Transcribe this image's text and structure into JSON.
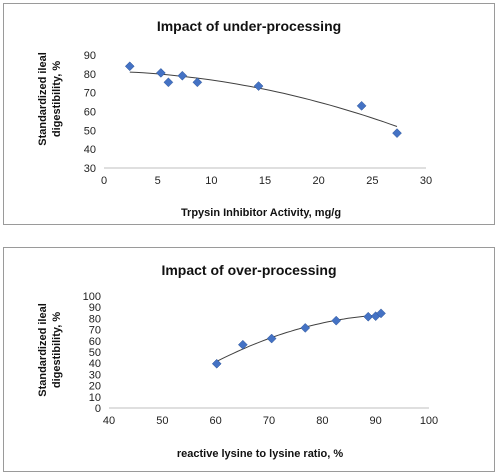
{
  "chart_data": [
    {
      "type": "scatter",
      "title": "Impact of under-processing",
      "xlabel": "Trpysin Inhibitor Activity, mg/g",
      "ylabel": "Standardized ileal digestibility, %",
      "ylabel_lines": [
        "Standardized ileal",
        "digestibility, %"
      ],
      "xlim": [
        0,
        30
      ],
      "ylim": [
        30,
        90
      ],
      "xticks": [
        0,
        5,
        10,
        15,
        20,
        25,
        30
      ],
      "yticks": [
        30,
        40,
        50,
        60,
        70,
        80,
        90
      ],
      "trendline": true,
      "points": [
        {
          "x": 2.4,
          "y": 84
        },
        {
          "x": 5.3,
          "y": 80.5
        },
        {
          "x": 6.0,
          "y": 75.5
        },
        {
          "x": 7.3,
          "y": 79
        },
        {
          "x": 8.7,
          "y": 75.5
        },
        {
          "x": 14.4,
          "y": 73.5
        },
        {
          "x": 24.0,
          "y": 63
        },
        {
          "x": 27.3,
          "y": 48.5
        }
      ],
      "marker_color": "#4472c4",
      "grid": false
    },
    {
      "type": "scatter",
      "title": "Impact of over-processing",
      "xlabel": "reactive lysine to lysine ratio, %",
      "ylabel": "Standardized ileal digestibility, %",
      "ylabel_lines": [
        "Standardized ileal",
        "digestibility, %"
      ],
      "xlim": [
        40,
        100
      ],
      "ylim": [
        0,
        100
      ],
      "xticks": [
        40,
        50,
        60,
        70,
        80,
        90,
        100
      ],
      "yticks": [
        0,
        10,
        20,
        30,
        40,
        50,
        60,
        70,
        80,
        90,
        100
      ],
      "trendline": true,
      "points": [
        {
          "x": 60.2,
          "y": 39.5
        },
        {
          "x": 65.1,
          "y": 56.5
        },
        {
          "x": 70.5,
          "y": 62
        },
        {
          "x": 76.8,
          "y": 71.5
        },
        {
          "x": 82.6,
          "y": 78
        },
        {
          "x": 88.6,
          "y": 81.5
        },
        {
          "x": 90.0,
          "y": 82
        },
        {
          "x": 91.0,
          "y": 84.5
        }
      ],
      "marker_color": "#4472c4",
      "grid": false
    }
  ]
}
